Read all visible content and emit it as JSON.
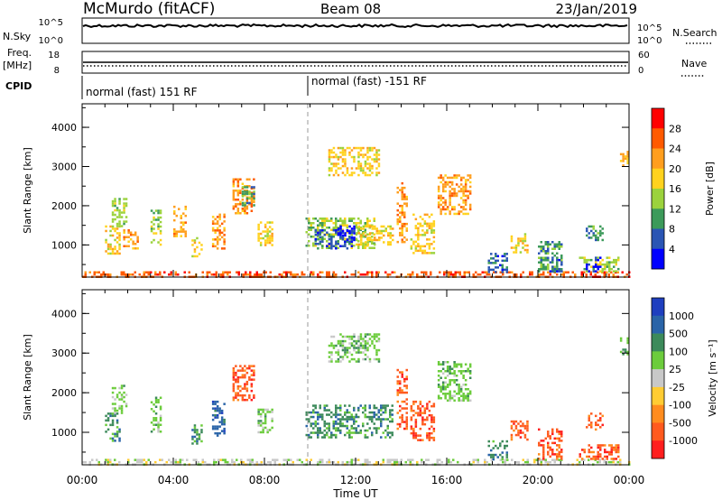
{
  "header": {
    "station": "McMurdo (fitACF)",
    "beam": "Beam 08",
    "date": "23/Jan/2019"
  },
  "strips": {
    "nsky_label": "N.Sky",
    "nsky_ticks": [
      "10^5",
      "10^0"
    ],
    "nsearch_label": "N.Search",
    "nsearch_ticks": [
      "10^5",
      "10^0"
    ],
    "freq_label": "Freq.",
    "freq_unit": "[MHz]",
    "freq_ticks": [
      "18",
      "8"
    ],
    "nave_label": "Nave",
    "nave_ticks": [
      "60",
      "0"
    ],
    "cpid_label": "CPID",
    "cpid_segments": [
      "normal (fast) 151 RF",
      "normal (fast) -151 RF"
    ]
  },
  "chart_data": [
    {
      "type": "heatmap",
      "name": "power",
      "ylabel": "Slant Range [km]",
      "xlabel": "Time UT",
      "xlim": [
        0,
        24
      ],
      "ylim": [
        180,
        4600
      ],
      "yticks": [
        "1000",
        "2000",
        "3000",
        "4000"
      ],
      "xticks": [
        "00:00",
        "04:00",
        "08:00",
        "12:00",
        "16:00",
        "20:00",
        "00:00"
      ],
      "colorbar": {
        "label": "Power [dB]",
        "ticks": [
          "28",
          "24",
          "20",
          "16",
          "12",
          "8",
          "4"
        ],
        "colors": [
          "#ff0000",
          "#ff5a00",
          "#ff9e1e",
          "#ffd21e",
          "#9bd23c",
          "#3c9a5a",
          "#2a55b4",
          "#0000ff"
        ]
      },
      "regions": [
        {
          "t": [
            0.0,
            24.0
          ],
          "r": [
            200,
            330
          ],
          "level": 1
        },
        {
          "t": [
            1.0,
            1.6
          ],
          "r": [
            800,
            1500
          ],
          "level": 3
        },
        {
          "t": [
            1.3,
            1.9
          ],
          "r": [
            1500,
            2200
          ],
          "level": 4
        },
        {
          "t": [
            1.8,
            2.4
          ],
          "r": [
            900,
            1400
          ],
          "level": 2
        },
        {
          "t": [
            3.0,
            3.4
          ],
          "r": [
            1000,
            1900
          ],
          "level": 4
        },
        {
          "t": [
            4.0,
            4.5
          ],
          "r": [
            1200,
            2000
          ],
          "level": 2
        },
        {
          "t": [
            4.8,
            5.2
          ],
          "r": [
            700,
            1200
          ],
          "level": 3
        },
        {
          "t": [
            5.7,
            6.2
          ],
          "r": [
            900,
            1800
          ],
          "level": 2
        },
        {
          "t": [
            6.6,
            7.5
          ],
          "r": [
            1800,
            2700
          ],
          "level": 2
        },
        {
          "t": [
            7.0,
            7.5
          ],
          "r": [
            2000,
            2500
          ],
          "level": 5
        },
        {
          "t": [
            7.7,
            8.3
          ],
          "r": [
            1000,
            1600
          ],
          "level": 3
        },
        {
          "t": [
            9.8,
            12.8
          ],
          "r": [
            900,
            1700
          ],
          "level": 4
        },
        {
          "t": [
            10.2,
            11.8
          ],
          "r": [
            900,
            1400
          ],
          "level": 6
        },
        {
          "t": [
            11.2,
            11.9
          ],
          "r": [
            1100,
            1500
          ],
          "level": 7
        },
        {
          "t": [
            12.0,
            13.6
          ],
          "r": [
            1000,
            1500
          ],
          "level": 3
        },
        {
          "t": [
            10.8,
            13.0
          ],
          "r": [
            2800,
            3500
          ],
          "level": 3
        },
        {
          "t": [
            13.8,
            14.2
          ],
          "r": [
            1100,
            2600
          ],
          "level": 2
        },
        {
          "t": [
            14.4,
            15.4
          ],
          "r": [
            800,
            1800
          ],
          "level": 3
        },
        {
          "t": [
            15.6,
            17.0
          ],
          "r": [
            1800,
            2800
          ],
          "level": 2
        },
        {
          "t": [
            17.8,
            18.6
          ],
          "r": [
            330,
            800
          ],
          "level": 6
        },
        {
          "t": [
            18.8,
            19.5
          ],
          "r": [
            800,
            1300
          ],
          "level": 3
        },
        {
          "t": [
            20.0,
            21.0
          ],
          "r": [
            330,
            1100
          ],
          "level": 5
        },
        {
          "t": [
            20.5,
            21.0
          ],
          "r": [
            330,
            700
          ],
          "level": 6
        },
        {
          "t": [
            21.8,
            23.5
          ],
          "r": [
            330,
            700
          ],
          "level": 4
        },
        {
          "t": [
            22.1,
            22.7
          ],
          "r": [
            330,
            700
          ],
          "level": 7
        },
        {
          "t": [
            22.1,
            22.8
          ],
          "r": [
            1100,
            1500
          ],
          "level": 5
        },
        {
          "t": [
            23.6,
            23.9
          ],
          "r": [
            3000,
            3400
          ],
          "level": 2
        }
      ]
    },
    {
      "type": "heatmap",
      "name": "velocity",
      "ylabel": "Slant Range [km]",
      "xlabel": "Time UT",
      "xlim": [
        0,
        24
      ],
      "ylim": [
        180,
        4600
      ],
      "yticks": [
        "1000",
        "2000",
        "3000",
        "4000"
      ],
      "xticks": [
        "00:00",
        "04:00",
        "08:00",
        "12:00",
        "16:00",
        "20:00",
        "00:00"
      ],
      "colorbar": {
        "label": "Velocity [m s⁻¹]",
        "ticks": [
          "1000",
          "500",
          "100",
          "25",
          "-25",
          "-100",
          "-500",
          "-1000"
        ],
        "colors": [
          "#1f3fbf",
          "#2a64a8",
          "#3c8a5a",
          "#6ccc3c",
          "#c8c8c8",
          "#ffcc33",
          "#ff8c1e",
          "#ff5a1e",
          "#ff1e1e"
        ]
      },
      "regions": [
        {
          "t": [
            0.0,
            24.0
          ],
          "r": [
            200,
            330
          ],
          "level": 4
        },
        {
          "t": [
            1.0,
            1.6
          ],
          "r": [
            800,
            1500
          ],
          "level": 2
        },
        {
          "t": [
            1.3,
            1.9
          ],
          "r": [
            1500,
            2200
          ],
          "level": 3
        },
        {
          "t": [
            3.0,
            3.4
          ],
          "r": [
            1000,
            1900
          ],
          "level": 3
        },
        {
          "t": [
            4.8,
            5.2
          ],
          "r": [
            700,
            1200
          ],
          "level": 2
        },
        {
          "t": [
            5.7,
            6.2
          ],
          "r": [
            900,
            1800
          ],
          "level": 1
        },
        {
          "t": [
            6.6,
            7.5
          ],
          "r": [
            1800,
            2700
          ],
          "level": 7
        },
        {
          "t": [
            7.7,
            8.3
          ],
          "r": [
            1000,
            1600
          ],
          "level": 3
        },
        {
          "t": [
            9.8,
            13.6
          ],
          "r": [
            900,
            1700
          ],
          "level": 2
        },
        {
          "t": [
            10.8,
            13.0
          ],
          "r": [
            2800,
            3500
          ],
          "level": 3
        },
        {
          "t": [
            13.8,
            14.2
          ],
          "r": [
            1100,
            2600
          ],
          "level": 7
        },
        {
          "t": [
            14.4,
            15.4
          ],
          "r": [
            800,
            1800
          ],
          "level": 7
        },
        {
          "t": [
            15.6,
            17.0
          ],
          "r": [
            1800,
            2800
          ],
          "level": 3
        },
        {
          "t": [
            17.8,
            18.6
          ],
          "r": [
            330,
            800
          ],
          "level": 2
        },
        {
          "t": [
            18.8,
            19.5
          ],
          "r": [
            800,
            1300
          ],
          "level": 7
        },
        {
          "t": [
            20.0,
            21.0
          ],
          "r": [
            330,
            1100
          ],
          "level": 7
        },
        {
          "t": [
            21.8,
            23.5
          ],
          "r": [
            330,
            700
          ],
          "level": 7
        },
        {
          "t": [
            22.1,
            22.8
          ],
          "r": [
            1100,
            1500
          ],
          "level": 7
        },
        {
          "t": [
            23.6,
            23.9
          ],
          "r": [
            3000,
            3400
          ],
          "level": 3
        }
      ]
    }
  ]
}
